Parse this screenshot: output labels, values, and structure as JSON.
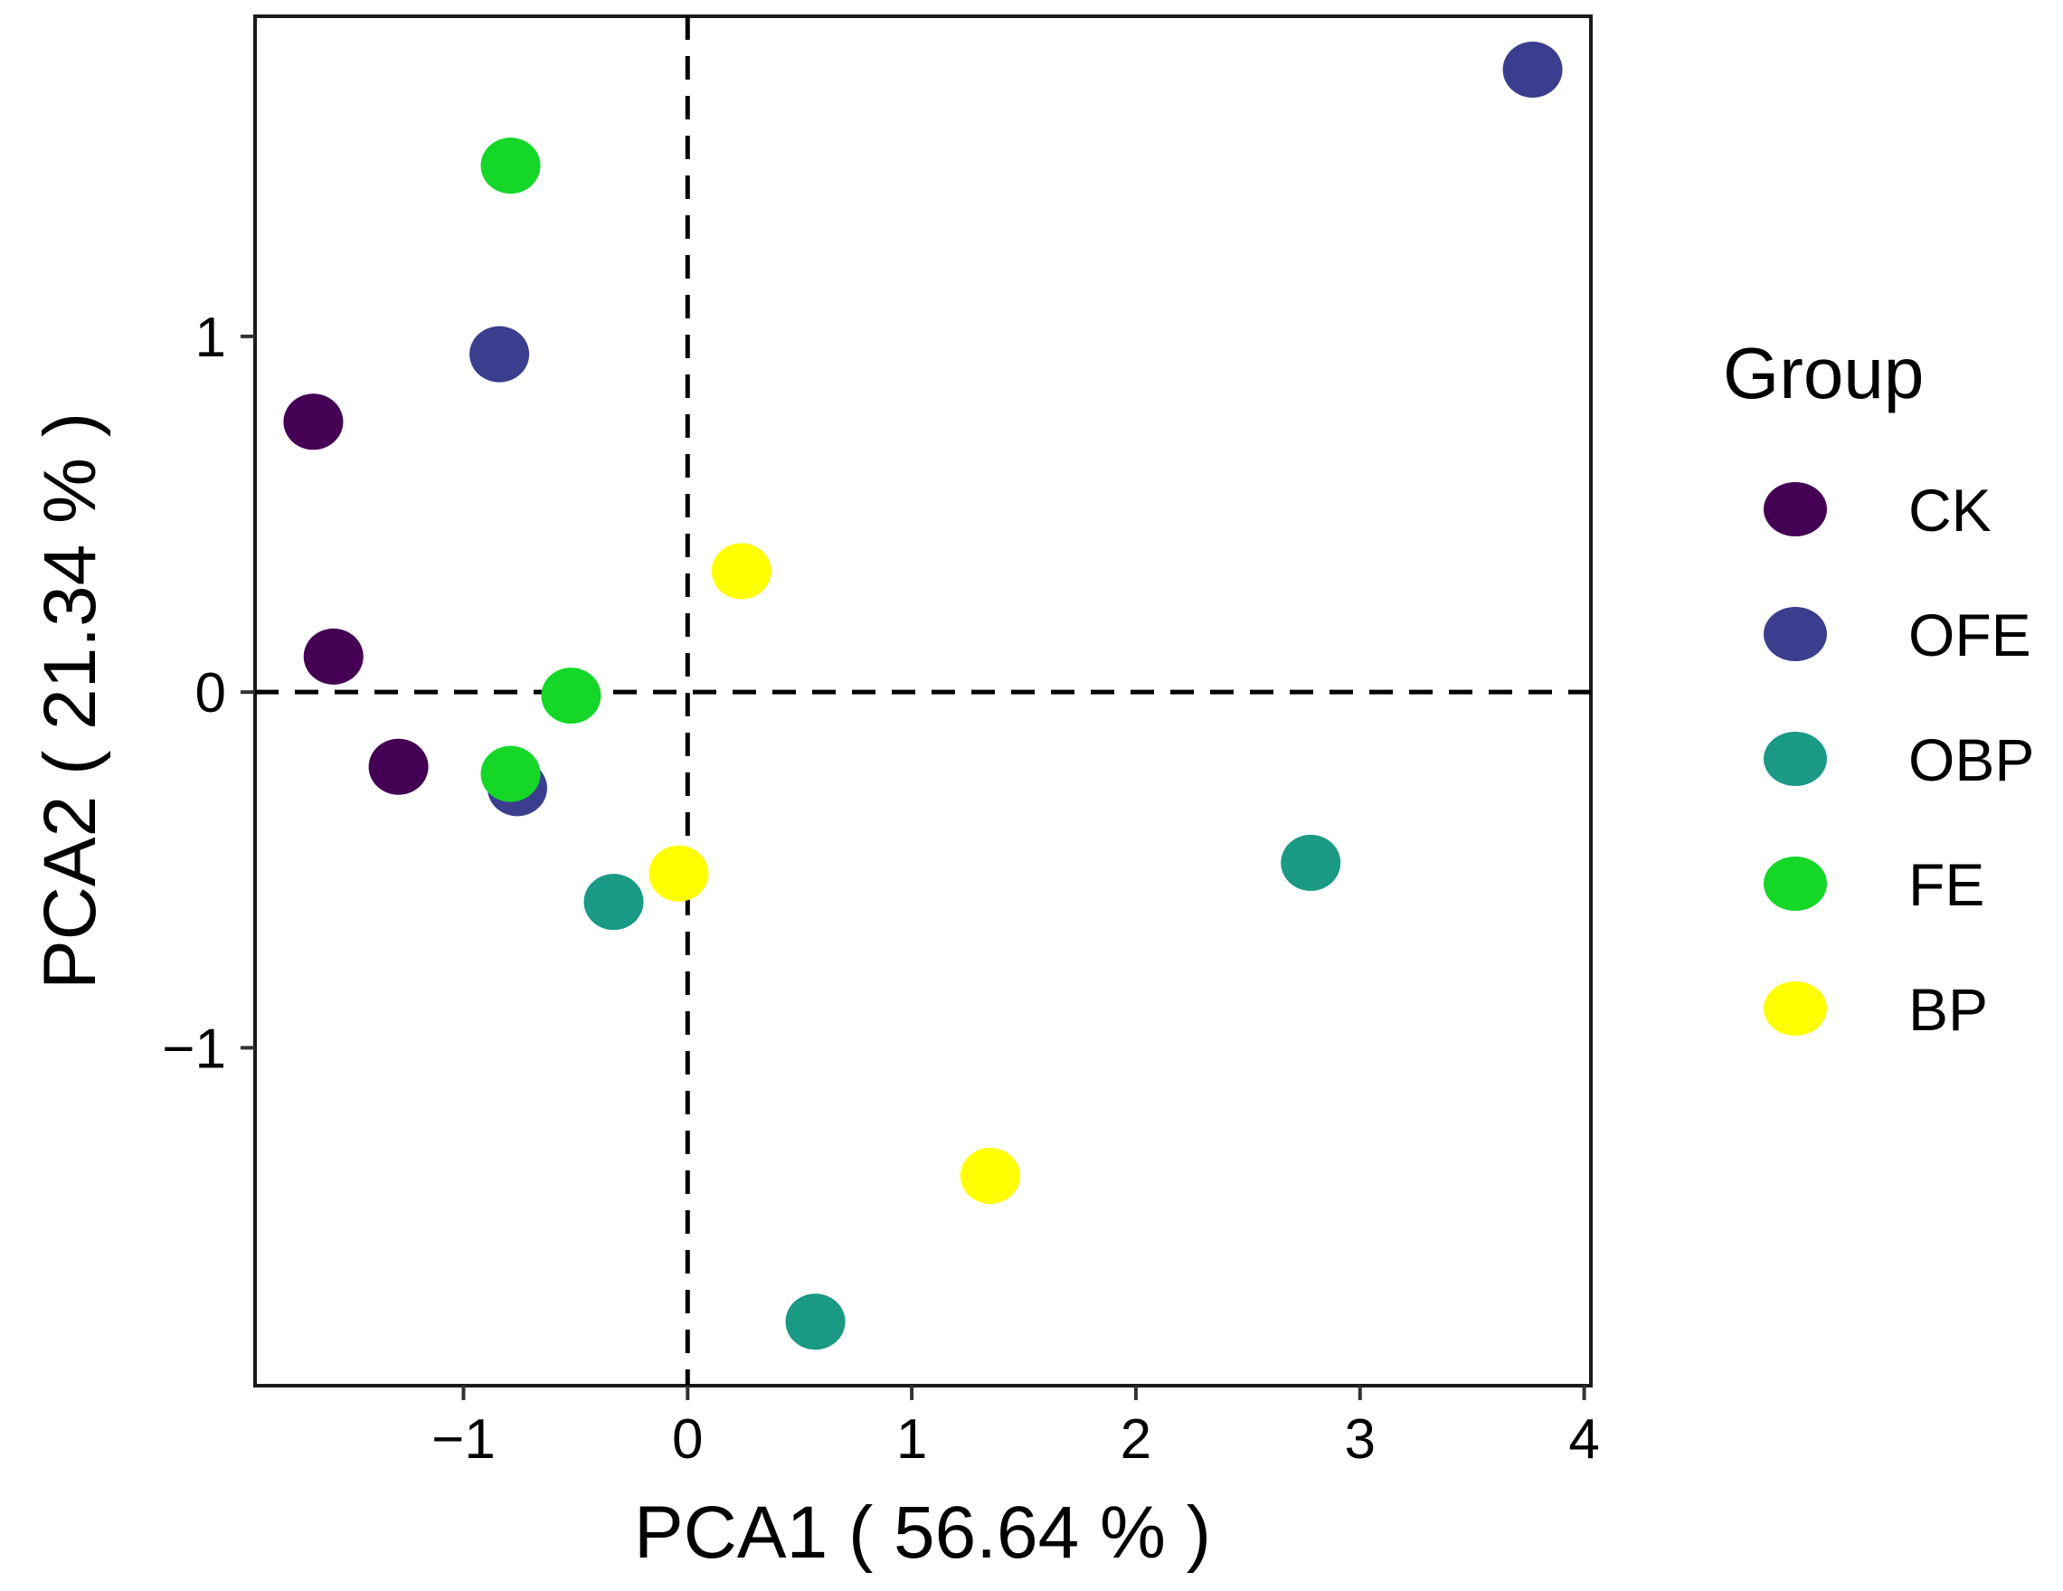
{
  "chart_data": {
    "type": "scatter",
    "title": "",
    "xlabel": "PCA1 ( 56.64 % )",
    "ylabel": "PCA2 ( 21.34 % )",
    "xlim": [
      -1.93,
      4.03
    ],
    "ylim": [
      -1.95,
      1.9
    ],
    "xticks": [
      -1,
      0,
      1,
      2,
      3,
      4
    ],
    "yticks": [
      -1,
      0,
      1
    ],
    "xtick_labels": [
      "−1",
      "0",
      "1",
      "2",
      "3",
      "4"
    ],
    "ytick_labels": [
      "−1",
      "0",
      "1"
    ],
    "reference_lines": {
      "x": 0,
      "y": 0,
      "style": "dashed"
    },
    "grid": false,
    "legend": {
      "title": "Group",
      "position": "right"
    },
    "series": [
      {
        "name": "CK",
        "color": "#440154",
        "points": [
          {
            "x": -1.67,
            "y": 0.76
          },
          {
            "x": -1.58,
            "y": 0.1
          },
          {
            "x": -1.29,
            "y": -0.21
          }
        ]
      },
      {
        "name": "OFE",
        "color": "#3b3e8f",
        "points": [
          {
            "x": 3.77,
            "y": 1.75
          },
          {
            "x": -0.84,
            "y": 0.95
          },
          {
            "x": -0.76,
            "y": -0.27
          }
        ]
      },
      {
        "name": "OBP",
        "color": "#1a9985",
        "points": [
          {
            "x": 2.78,
            "y": -0.48
          },
          {
            "x": -0.33,
            "y": -0.59
          },
          {
            "x": 0.57,
            "y": -1.77
          }
        ]
      },
      {
        "name": "FE",
        "color": "#14d728",
        "points": [
          {
            "x": -0.79,
            "y": 1.48
          },
          {
            "x": -0.52,
            "y": -0.01
          },
          {
            "x": -0.79,
            "y": -0.23
          }
        ]
      },
      {
        "name": "BP",
        "color": "#ffff00",
        "points": [
          {
            "x": 0.24,
            "y": 0.34
          },
          {
            "x": -0.04,
            "y": -0.51
          },
          {
            "x": 1.35,
            "y": -1.36
          }
        ]
      }
    ]
  }
}
